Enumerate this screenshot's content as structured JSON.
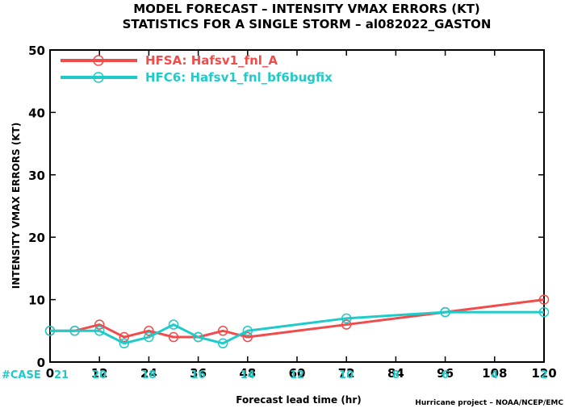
{
  "chart_data": {
    "type": "line",
    "title_lines": [
      "MODEL FORECAST – INTENSITY VMAX ERRORS (KT)",
      "STATISTICS FOR A SINGLE STORM – al082022_GASTON"
    ],
    "xlabel": "Forecast lead time (hr)",
    "ylabel": "INTENSITY VMAX ERRORS (KT)",
    "xlim": [
      0,
      120
    ],
    "ylim": [
      0,
      50
    ],
    "x_ticks": [
      0,
      12,
      24,
      36,
      48,
      60,
      72,
      84,
      96,
      108,
      120
    ],
    "y_ticks": [
      0,
      10,
      20,
      30,
      40,
      50
    ],
    "grid": false,
    "legend_position": "top-left",
    "series": [
      {
        "name": "HFSA: Hafsv1_fnl_A",
        "color": "#f04c4c",
        "x": [
          0,
          6,
          12,
          18,
          24,
          30,
          36,
          42,
          48,
          72,
          96,
          120
        ],
        "y": [
          5,
          5,
          6,
          4,
          5,
          4,
          4,
          5,
          4,
          6,
          8,
          10
        ]
      },
      {
        "name": "HFC6: Hafsv1_fnl_bf6bugfix",
        "color": "#1ecbc9",
        "x": [
          0,
          6,
          12,
          18,
          24,
          30,
          36,
          42,
          48,
          72,
          96,
          120
        ],
        "y": [
          5,
          5,
          5,
          3,
          4,
          6,
          4,
          3,
          5,
          7,
          8,
          8
        ]
      }
    ],
    "case_counts": {
      "label": "#CASE",
      "x": [
        0,
        12,
        24,
        36,
        48,
        60,
        72,
        84,
        96,
        108,
        120
      ],
      "counts": [
        "21",
        "20",
        "18",
        "16",
        "14",
        "12",
        "10",
        "8",
        "6",
        "4",
        "2"
      ],
      "color": "#1ecbc9"
    },
    "credit": "Hurricane project – NOAA/NCEP/EMC"
  }
}
